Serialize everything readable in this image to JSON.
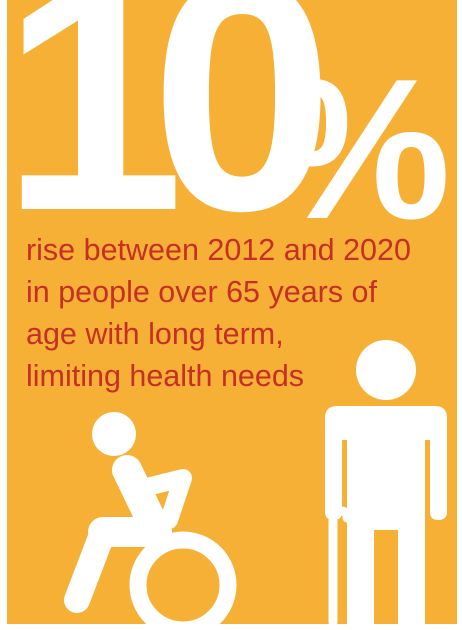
{
  "headline": {
    "number": "10",
    "percent_sign": "%"
  },
  "caption": {
    "lines": [
      "rise between 2012 and 2020",
      "in people over 65 years of",
      "age with long term,",
      "limiting health needs"
    ]
  },
  "colors": {
    "background": "#f7b036",
    "headline": "#ffffff",
    "caption": "#c62f25",
    "icons": "#ffffff"
  },
  "icons": {
    "left": "wheelchair-user-icon",
    "right": "elderly-person-with-cane-icon"
  }
}
